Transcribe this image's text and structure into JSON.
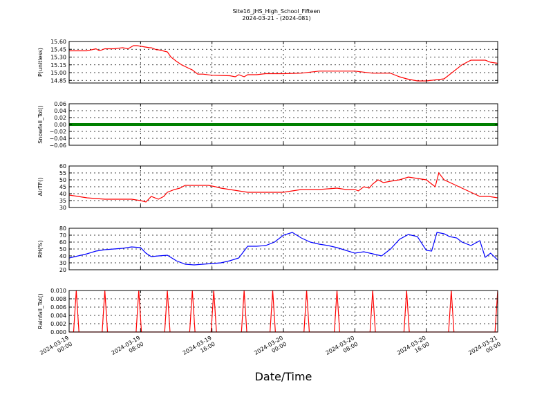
{
  "figure": {
    "title_line1": "Site16_JHS_High_School_Fifteen",
    "title_line2": "2024-03-21 - (2024-081)",
    "xlabel": "Date/Time"
  },
  "chart_data": [
    {
      "type": "line",
      "ylabel": "P(unitless)",
      "ylim": [
        14.8,
        15.6
      ],
      "yticks": [
        "15.60",
        "15.45",
        "15.30",
        "15.15",
        "15.00",
        "14.85"
      ],
      "ytick_values": [
        15.6,
        15.45,
        15.3,
        15.15,
        15.0,
        14.85
      ],
      "grid": true,
      "series": [
        {
          "color": "#ff0000",
          "x": [
            0,
            1,
            1.5,
            1.7,
            2,
            2.2,
            2.5,
            3.0,
            3.3,
            3.5,
            3.6,
            3.8,
            4.5,
            4.6,
            4.9,
            5.0,
            5.5,
            5.7,
            6.0,
            6.3,
            6.6,
            6.9,
            7.2,
            7.5,
            8.0,
            9.0,
            9.3,
            9.5,
            9.8,
            10.0,
            10.5,
            11.0,
            11.5,
            12.0,
            13.0,
            14.0,
            16.0,
            17.0,
            18.0,
            18.2,
            18.5,
            18.9,
            19.2,
            19.5,
            20.0,
            21.0,
            22.0,
            22.5,
            23.0,
            23.3,
            23.6,
            24.0
          ],
          "y": [
            15.42,
            15.42,
            15.46,
            15.42,
            15.46,
            15.46,
            15.46,
            15.48,
            15.46,
            15.5,
            15.52,
            15.52,
            15.48,
            15.48,
            15.44,
            15.44,
            15.4,
            15.3,
            15.22,
            15.15,
            15.1,
            15.05,
            14.97,
            14.97,
            14.95,
            14.94,
            14.92,
            14.96,
            14.92,
            14.96,
            14.96,
            14.98,
            14.98,
            14.98,
            14.99,
            15.03,
            15.03,
            14.99,
            14.99,
            14.96,
            14.92,
            14.88,
            14.86,
            14.84,
            14.84,
            14.88,
            15.15,
            15.24,
            15.24,
            15.24,
            15.2,
            15.18
          ]
        }
      ]
    },
    {
      "type": "line",
      "ylabel": "Snowfall_Tot()",
      "ylim": [
        -0.06,
        0.06
      ],
      "yticks": [
        "0.06",
        "0.04",
        "0.02",
        "0.00",
        "−0.02",
        "−0.04",
        "−0.06"
      ],
      "ytick_values": [
        0.06,
        0.04,
        0.02,
        0.0,
        -0.02,
        -0.04,
        -0.06
      ],
      "grid": true,
      "series": [
        {
          "color": "#008000",
          "x": [
            0,
            24
          ],
          "y": [
            0,
            0
          ]
        }
      ]
    },
    {
      "type": "line",
      "ylabel": "AirTF()",
      "ylim": [
        30,
        60
      ],
      "yticks": [
        "60",
        "55",
        "50",
        "45",
        "40",
        "35",
        "30"
      ],
      "ytick_values": [
        60,
        55,
        50,
        45,
        40,
        35,
        30
      ],
      "grid": true,
      "series": [
        {
          "color": "#ff0000",
          "x": [
            0,
            1,
            2,
            3,
            3.5,
            4.0,
            4.3,
            4.6,
            5.0,
            5.3,
            5.5,
            5.9,
            6.2,
            6.5,
            7.0,
            7.5,
            7.8,
            8.2,
            8.5,
            9.0,
            10.0,
            11.0,
            12.0,
            13.0,
            14.0,
            15.0,
            15.5,
            16.0,
            16.2,
            16.5,
            16.8,
            17.0,
            17.3,
            17.6,
            18.0,
            18.5,
            19.0,
            19.5,
            20.0,
            20.3,
            20.5,
            20.7,
            21.0,
            21.5,
            22.0,
            22.5,
            23.0,
            23.5,
            24.0
          ],
          "y": [
            39,
            37,
            36,
            36,
            36,
            35,
            34,
            38,
            36,
            38,
            41,
            43,
            44,
            46,
            46,
            46,
            46,
            45,
            44,
            43,
            41,
            41,
            41,
            43,
            43,
            44,
            43,
            43,
            42,
            45,
            44,
            47,
            50,
            48,
            49,
            50,
            52,
            51,
            50,
            47,
            45,
            55,
            50,
            47,
            44,
            41,
            38,
            38,
            37
          ]
        }
      ]
    },
    {
      "type": "line",
      "ylabel": "RH(%)",
      "ylim": [
        20,
        80
      ],
      "yticks": [
        "80",
        "70",
        "60",
        "50",
        "40",
        "30",
        "20"
      ],
      "ytick_values": [
        80,
        70,
        60,
        50,
        40,
        30,
        20
      ],
      "grid": true,
      "series": [
        {
          "color": "#0000ff",
          "x": [
            0,
            1,
            1.5,
            2,
            3,
            3.5,
            4.0,
            4.3,
            4.6,
            5.0,
            5.5,
            6.0,
            6.5,
            7.0,
            7.5,
            8.0,
            8.5,
            9.0,
            9.5,
            10.0,
            10.5,
            11.0,
            11.5,
            12.0,
            12.5,
            13.0,
            13.5,
            14.0,
            14.5,
            15.0,
            15.5,
            16.0,
            16.5,
            17.0,
            17.5,
            18.0,
            18.5,
            19.0,
            19.5,
            20.0,
            20.3,
            20.6,
            21.0,
            21.3,
            21.7,
            22.0,
            22.5,
            23.0,
            23.3,
            23.6,
            24.0
          ],
          "y": [
            37,
            43,
            47,
            49,
            51,
            53,
            52,
            44,
            39,
            40,
            41,
            33,
            28,
            27,
            28,
            29,
            30,
            33,
            37,
            54,
            54,
            55,
            60,
            70,
            74,
            66,
            60,
            57,
            55,
            52,
            48,
            44,
            46,
            43,
            40,
            50,
            64,
            71,
            68,
            48,
            47,
            74,
            72,
            68,
            66,
            60,
            55,
            62,
            38,
            44,
            34
          ]
        }
      ]
    },
    {
      "type": "line",
      "ylabel": "Rainfall_Tot()",
      "ylim": [
        0,
        0.01
      ],
      "yticks": [
        "0.010",
        "0.008",
        "0.006",
        "0.004",
        "0.002",
        "0.000"
      ],
      "ytick_values": [
        0.01,
        0.008,
        0.006,
        0.004,
        0.002,
        0.0
      ],
      "grid": true,
      "series": [
        {
          "color": "#ff0000",
          "spikes_x": [
            0.4,
            2.0,
            3.9,
            5.5,
            6.9,
            8.1,
            9.8,
            11.4,
            13.3,
            15.0,
            17.0,
            18.9,
            21.4,
            24.0
          ],
          "spike_height": 0.01
        }
      ]
    }
  ],
  "x_axis": {
    "range": [
      0,
      24
    ],
    "tick_values": [
      0,
      4,
      8,
      12,
      16,
      20,
      24
    ],
    "tick_labels": [
      [
        "2024-03-19",
        "00:00"
      ],
      [
        "2024-03-19",
        "08:00"
      ],
      [
        "2024-03-19",
        "16:00"
      ],
      [
        "2024-03-20",
        "00:00"
      ],
      [
        "2024-03-20",
        "08:00"
      ],
      [
        "2024-03-20",
        "16:00"
      ],
      [
        "2024-03-21",
        "00:00"
      ]
    ]
  }
}
